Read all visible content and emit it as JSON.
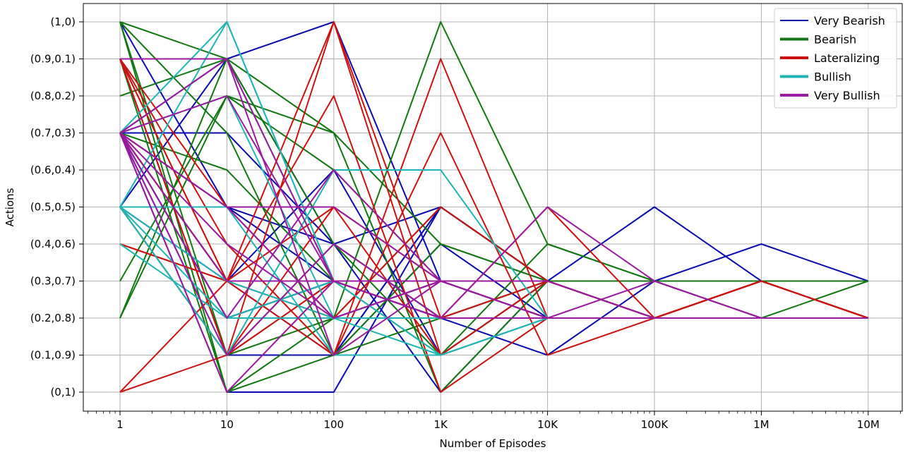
{
  "chart_data": {
    "type": "line",
    "xlabel": "Number of Episodes",
    "ylabel": "Actions",
    "x_scale": "log",
    "x": [
      1,
      10,
      100,
      1000,
      10000,
      100000,
      1000000,
      10000000
    ],
    "x_tick_labels": [
      "1",
      "10",
      "100",
      "1K",
      "10K",
      "100K",
      "1M",
      "10M"
    ],
    "y_tick_labels": [
      "(0,1)",
      "(0.1,0.9)",
      "(0.2,0.8)",
      "(0.3,0.7)",
      "(0.4,0.6)",
      "(0.5,0.5)",
      "(0.6,0.4)",
      "(0.7,0.3)",
      "(0.8,0.2)",
      "(0.9,0.1)",
      "(1,0)"
    ],
    "y_note": "y values are the first component of the action pair (tick label (a,1-a))",
    "ylim": [
      0,
      1
    ],
    "grid": true,
    "legend_position": "top-right",
    "series": [
      {
        "name": "Very Bearish",
        "color": "#0a0aaf",
        "lines": [
          [
            0.7,
            0.7,
            0.4,
            0.2,
            0.2,
            0.2,
            0.2,
            0.2
          ],
          [
            0.9,
            0.1,
            0.1,
            0.4,
            0.2,
            0.2,
            0.2,
            0.2
          ],
          [
            0.5,
            0.9,
            1.0,
            0.3,
            0.2,
            0.2,
            0.2,
            0.2
          ],
          [
            0.7,
            0.3,
            0.1,
            0.5,
            0.3,
            0.3,
            0.3,
            0.3
          ],
          [
            0.7,
            0.0,
            0.0,
            0.5,
            0.3,
            0.3,
            0.3,
            0.3
          ],
          [
            0.7,
            0.5,
            0.4,
            0.0,
            0.3,
            0.3,
            0.3,
            0.3
          ],
          [
            0.7,
            0.1,
            0.1,
            0.5,
            0.3,
            0.3,
            0.3,
            0.3
          ],
          [
            0.7,
            0.9,
            0.4,
            0.5,
            0.3,
            0.3,
            0.3,
            0.3
          ],
          [
            0.5,
            0.3,
            0.6,
            0.1,
            0.3,
            0.3,
            0.3,
            0.3
          ],
          [
            0.7,
            0.2,
            0.3,
            0.3,
            0.2,
            0.2,
            0.2,
            0.2
          ],
          [
            1.0,
            0.5,
            0.3,
            0.2,
            0.1,
            0.3,
            0.4,
            0.3
          ],
          [
            0.7,
            0.2,
            0.3,
            0.2,
            0.3,
            0.5,
            0.3,
            0.3
          ]
        ]
      },
      {
        "name": "Bearish",
        "color": "#117711",
        "lines": [
          [
            1.0,
            0.9,
            0.7,
            0.0,
            0.3,
            0.3,
            0.3,
            0.3
          ],
          [
            0.8,
            0.9,
            0.4,
            0.2,
            0.3,
            0.3,
            0.3,
            0.3
          ],
          [
            0.2,
            0.9,
            0.3,
            0.1,
            0.4,
            0.3,
            0.2,
            0.3
          ],
          [
            1.0,
            0.1,
            0.2,
            0.5,
            0.3,
            0.3,
            0.3,
            0.3
          ],
          [
            0.9,
            0.0,
            0.2,
            1.0,
            0.4,
            0.3,
            0.3,
            0.3
          ],
          [
            0.5,
            0.1,
            0.3,
            0.3,
            0.3,
            0.3,
            0.3,
            0.3
          ],
          [
            0.2,
            0.8,
            0.6,
            0.3,
            0.3,
            0.3,
            0.3,
            0.3
          ],
          [
            1.0,
            0.7,
            0.1,
            0.2,
            0.3,
            0.3,
            0.3,
            0.3
          ],
          [
            0.7,
            0.6,
            0.3,
            0.3,
            0.3,
            0.3,
            0.3,
            0.3
          ],
          [
            0.3,
            0.8,
            0.7,
            0.4,
            0.3,
            0.3,
            0.3,
            0.3
          ],
          [
            0.9,
            0.1,
            0.4,
            0.1,
            0.3,
            0.3,
            0.3,
            0.3
          ],
          [
            1.0,
            0.0,
            0.1,
            0.4,
            0.3,
            0.3,
            0.3,
            0.3
          ]
        ]
      },
      {
        "name": "Lateralizing",
        "color": "#cc1111",
        "lines": [
          [
            0.0,
            0.1,
            0.3,
            0.3,
            0.3,
            0.2,
            0.3,
            0.2
          ],
          [
            0.9,
            0.3,
            1.0,
            0.1,
            0.2,
            0.2,
            0.3,
            0.2
          ],
          [
            0.4,
            0.3,
            0.8,
            0.0,
            0.2,
            0.2,
            0.3,
            0.2
          ],
          [
            0.9,
            0.4,
            0.1,
            0.9,
            0.2,
            0.2,
            0.3,
            0.2
          ],
          [
            0.7,
            0.3,
            0.5,
            0.1,
            0.3,
            0.2,
            0.3,
            0.2
          ],
          [
            0.9,
            0.3,
            0.1,
            0.7,
            0.1,
            0.2,
            0.3,
            0.2
          ],
          [
            0.5,
            0.1,
            0.5,
            0.3,
            0.2,
            0.2,
            0.3,
            0.2
          ],
          [
            0.7,
            0.3,
            0.3,
            0.2,
            0.5,
            0.2,
            0.3,
            0.2
          ],
          [
            0.9,
            0.1,
            1.0,
            0.2,
            0.2,
            0.2,
            0.3,
            0.2
          ],
          [
            0.9,
            0.5,
            0.2,
            0.3,
            0.3,
            0.2,
            0.3,
            0.2
          ],
          [
            0.0,
            0.3,
            0.3,
            0.2,
            0.3,
            0.2,
            0.3,
            0.2
          ],
          [
            0.4,
            0.3,
            0.2,
            0.5,
            0.3,
            0.2,
            0.3,
            0.2
          ]
        ]
      },
      {
        "name": "Bullish",
        "color": "#1fb5b5",
        "lines": [
          [
            0.5,
            1.0,
            0.3,
            0.2,
            0.2,
            0.2,
            0.2,
            0.2
          ],
          [
            0.5,
            0.5,
            0.1,
            0.1,
            0.2,
            0.2,
            0.2,
            0.2
          ],
          [
            0.4,
            0.2,
            0.2,
            0.3,
            0.2,
            0.2,
            0.2,
            0.2
          ],
          [
            0.7,
            0.8,
            0.2,
            0.2,
            0.2,
            0.2,
            0.2,
            0.2
          ],
          [
            0.5,
            0.2,
            0.3,
            0.1,
            0.2,
            0.2,
            0.2,
            0.2
          ],
          [
            0.5,
            0.1,
            0.6,
            0.6,
            0.2,
            0.2,
            0.2,
            0.2
          ],
          [
            0.5,
            0.3,
            0.2,
            0.1,
            0.2,
            0.2,
            0.2,
            0.2
          ],
          [
            0.7,
            1.0,
            0.3,
            0.3,
            0.2,
            0.2,
            0.2,
            0.2
          ]
        ]
      },
      {
        "name": "Very Bullish",
        "color": "#9a1a9f",
        "lines": [
          [
            0.7,
            0.9,
            0.1,
            0.3,
            0.2,
            0.2,
            0.2,
            0.2
          ],
          [
            0.7,
            0.8,
            0.3,
            0.3,
            0.3,
            0.2,
            0.2,
            0.2
          ],
          [
            0.7,
            0.5,
            0.5,
            0.3,
            0.2,
            0.2,
            0.2,
            0.2
          ],
          [
            0.7,
            0.2,
            0.6,
            0.3,
            0.2,
            0.2,
            0.2,
            0.2
          ],
          [
            0.7,
            0.0,
            0.3,
            0.2,
            0.5,
            0.3,
            0.2,
            0.2
          ],
          [
            0.7,
            0.4,
            0.2,
            0.3,
            0.3,
            0.2,
            0.2,
            0.2
          ],
          [
            0.7,
            0.1,
            0.4,
            0.2,
            0.2,
            0.3,
            0.2,
            0.2
          ],
          [
            0.7,
            0.3,
            0.3,
            0.2,
            0.2,
            0.2,
            0.2,
            0.2
          ],
          [
            0.9,
            0.9,
            0.3,
            0.2,
            0.2,
            0.2,
            0.2,
            0.2
          ],
          [
            0.7,
            0.5,
            0.2,
            0.3,
            0.2,
            0.2,
            0.2,
            0.2
          ]
        ]
      }
    ]
  }
}
